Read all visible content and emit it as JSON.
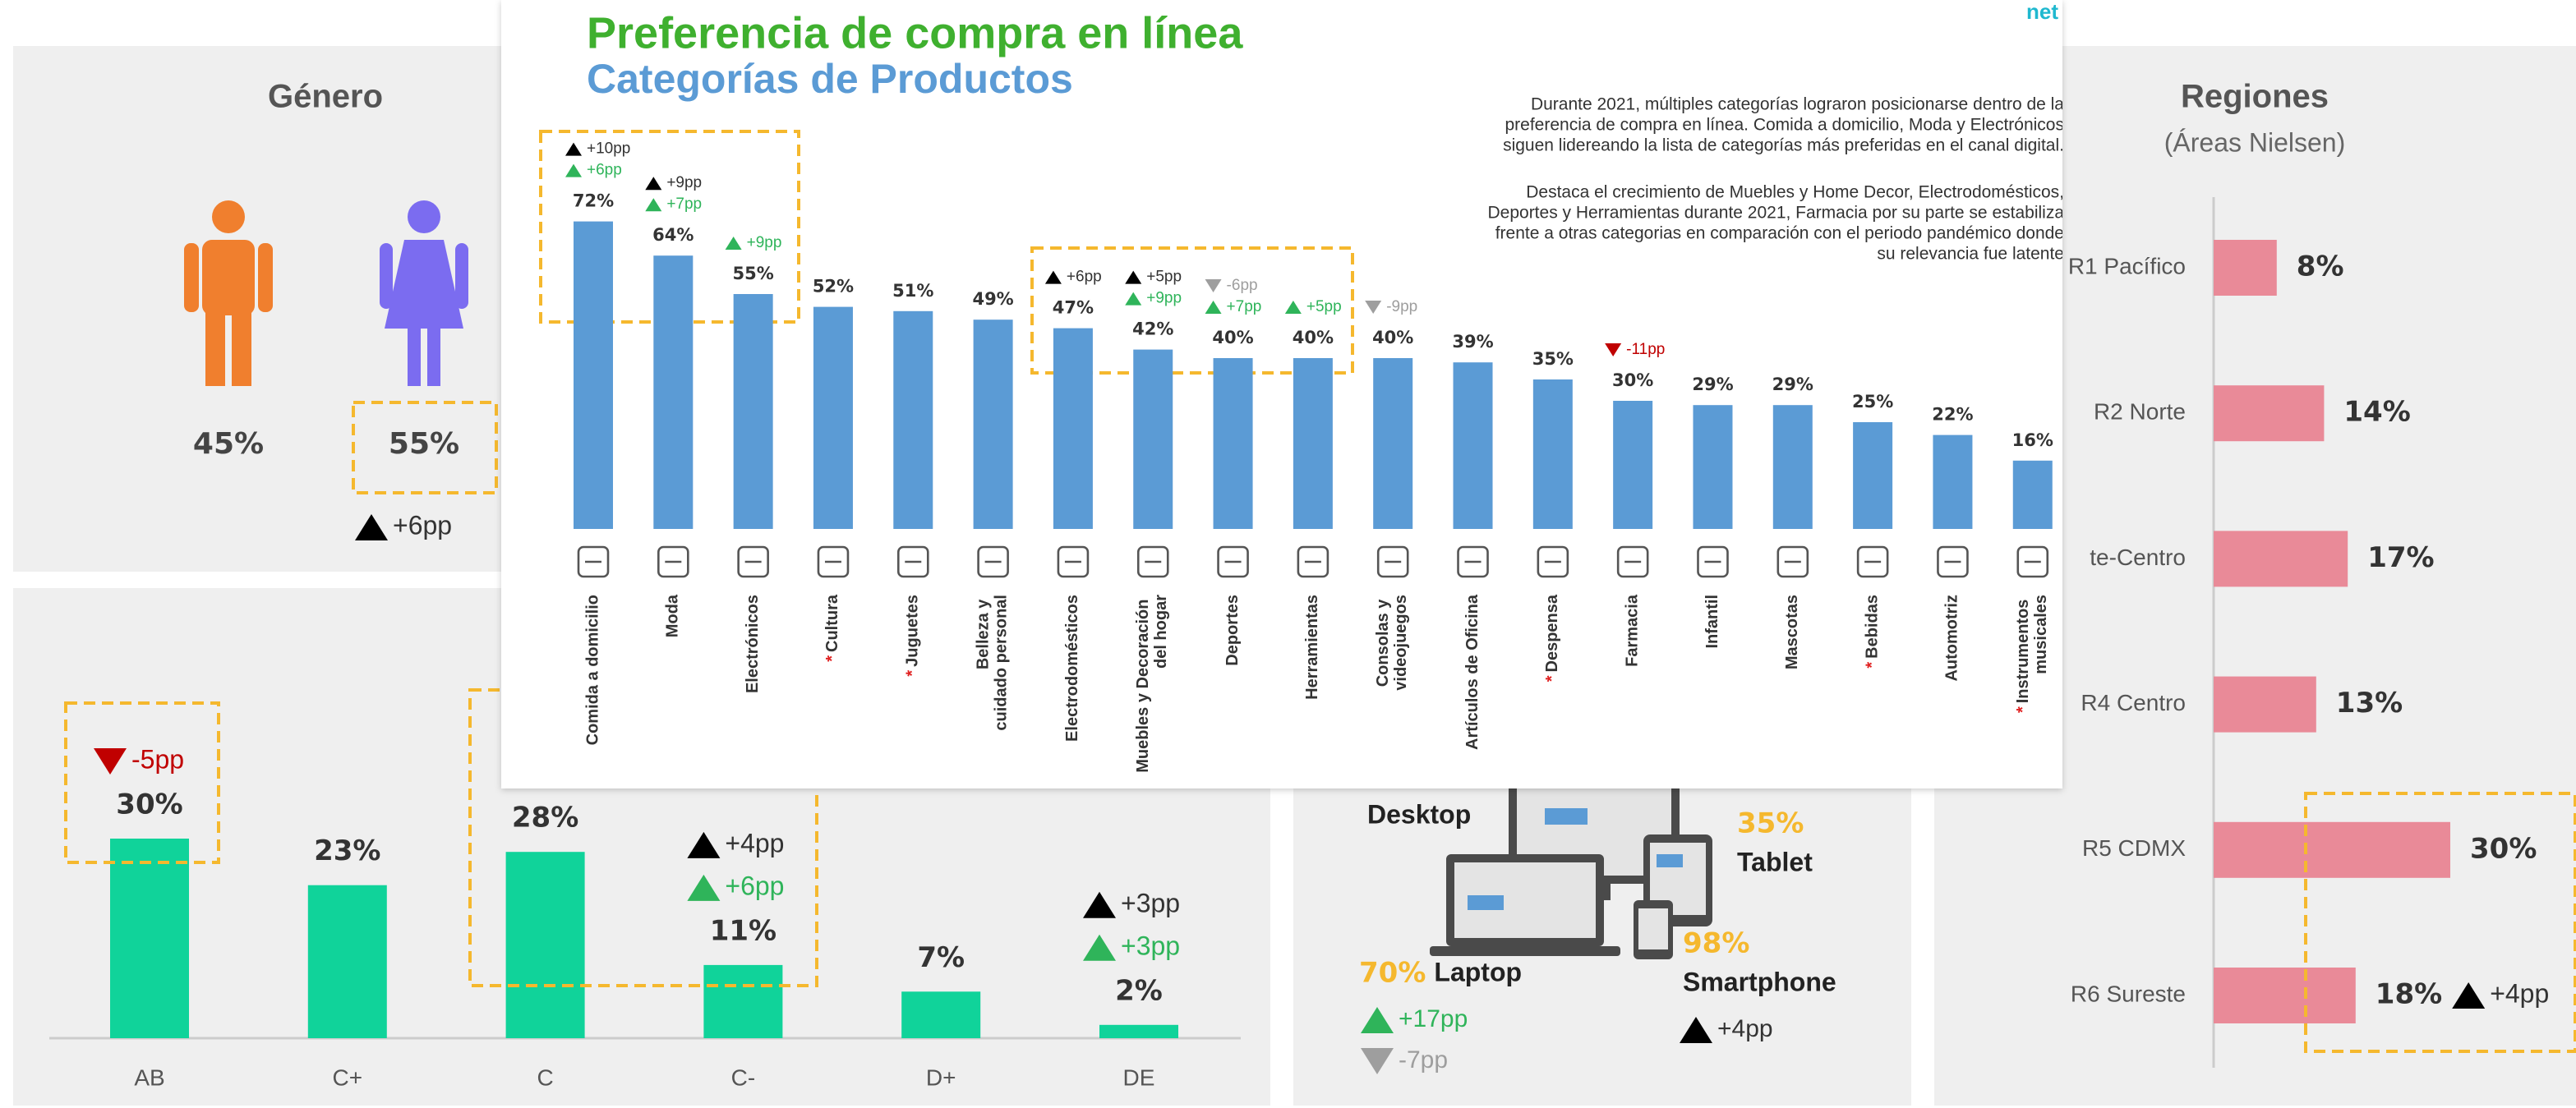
{
  "brand": "net",
  "chart_data": [
    {
      "type": "gender",
      "title": "Género",
      "values": [
        45,
        55
      ],
      "value_labels": [
        "45%",
        "55%"
      ],
      "colors": [
        "#f07f2e",
        "#7b6cf0"
      ],
      "annotations": [
        [],
        [
          {
            "value": 6,
            "label": "+6pp",
            "color": "#000000"
          }
        ]
      ]
    },
    {
      "type": "bar",
      "categories": [
        "AB",
        "C+",
        "C",
        "C-",
        "D+",
        "DE"
      ],
      "values": [
        30,
        23,
        28,
        11,
        7,
        2
      ],
      "value_labels": [
        "30%",
        "23%",
        "28%",
        "11%",
        "7%",
        "2%"
      ],
      "color": "#10d39a",
      "annotations": [
        [
          {
            "value": -5,
            "label": "-5pp",
            "color": "#c00000"
          }
        ],
        [],
        [],
        [
          {
            "value": 4,
            "label": "+4pp",
            "color": "#000000"
          },
          {
            "value": 6,
            "label": "+6pp",
            "color": "#2fb45a"
          }
        ],
        [],
        [
          {
            "value": 3,
            "label": "+3pp",
            "color": "#000000"
          },
          {
            "value": 3,
            "label": "+3pp",
            "color": "#2fb45a"
          }
        ]
      ]
    },
    {
      "type": "bar",
      "title": "Preferencia de compra en línea",
      "subtitle": "Categorías de Productos",
      "description": [
        [
          "Durante 2021, múltiples categorías lograron posicionarse dentro de la",
          "preferencia de compra en línea. Comida a domicilio, Moda y Electrónicos",
          "siguen lidereando la lista de categorías más preferidas en el canal digital."
        ],
        [
          "Destaca el crecimiento de Muebles y Home Decor, Electrodomésticos,",
          "Deportes y Herramientas durante 2021, Farmacia por su parte se estabiliza",
          "frente a otras categorias en comparación con el periodo pandémico donde",
          "su relevancia fue latente"
        ]
      ],
      "categories": [
        "Comida a domicilio",
        "Moda",
        "Electrónicos",
        "Cultura",
        "Juguetes",
        "Belleza y cuidado personal",
        "Electrodomésticos",
        "Muebles y Decoración del hogar",
        "Deportes",
        "Herramientas",
        "Consolas y videojuegos",
        "Artículos de Oficina",
        "Despensa",
        "Farmacia",
        "Infantil",
        "Mascotas",
        "Bebidas",
        "Automotriz",
        "Instrumentos musicales"
      ],
      "values": [
        72,
        64,
        55,
        52,
        51,
        49,
        47,
        42,
        40,
        40,
        40,
        39,
        35,
        30,
        29,
        29,
        25,
        22,
        16
      ],
      "value_labels": [
        "72%",
        "64%",
        "55%",
        "52%",
        "51%",
        "49%",
        "47%",
        "42%",
        "40%",
        "40%",
        "40%",
        "39%",
        "35%",
        "30%",
        "29%",
        "29%",
        "25%",
        "22%",
        "16%"
      ],
      "color": "#5b9bd5",
      "marker": "*",
      "marked": [
        false,
        false,
        false,
        true,
        true,
        false,
        false,
        false,
        false,
        false,
        false,
        false,
        true,
        false,
        false,
        false,
        true,
        false,
        true
      ],
      "annotations": [
        [
          {
            "value": 10,
            "label": "+10pp",
            "color": "#000000"
          },
          {
            "value": 6,
            "label": "+6pp",
            "color": "#2fb45a"
          }
        ],
        [
          {
            "value": 9,
            "label": "+9pp",
            "color": "#000000"
          },
          {
            "value": 7,
            "label": "+7pp",
            "color": "#2fb45a"
          }
        ],
        [
          {
            "value": 9,
            "label": "+9pp",
            "color": "#2fb45a"
          }
        ],
        [],
        [],
        [],
        [
          {
            "value": 6,
            "label": "+6pp",
            "color": "#000000"
          }
        ],
        [
          {
            "value": 5,
            "label": "+5pp",
            "color": "#000000"
          },
          {
            "value": 9,
            "label": "+9pp",
            "color": "#2fb45a"
          }
        ],
        [
          {
            "value": -6,
            "label": "-6pp",
            "color": "#9e9e9e"
          },
          {
            "value": 7,
            "label": "+7pp",
            "color": "#2fb45a"
          }
        ],
        [
          {
            "value": 5,
            "label": "+5pp",
            "color": "#2fb45a"
          }
        ],
        [
          {
            "value": -9,
            "label": "-9pp",
            "color": "#9e9e9e"
          }
        ],
        [],
        [],
        [
          {
            "value": -11,
            "label": "-11pp",
            "color": "#c00000"
          }
        ],
        [],
        [],
        [],
        [],
        []
      ]
    },
    {
      "type": "devices",
      "categories": [
        "Desktop",
        "Tablet",
        "Laptop",
        "Smartphone"
      ],
      "values": [
        null,
        35,
        70,
        98
      ],
      "value_labels": [
        null,
        "35%",
        "70%",
        "98%"
      ],
      "color": "#f5b82e",
      "annotations": [
        [],
        [],
        [
          {
            "value": 17,
            "label": "+17pp",
            "color": "#2fb45a"
          },
          {
            "value": -7,
            "label": "-7pp",
            "color": "#9e9e9e"
          }
        ],
        [
          {
            "value": 4,
            "label": "+4pp",
            "color": "#000000"
          }
        ]
      ]
    },
    {
      "type": "hbar",
      "title": "Regiones",
      "subtitle": "(Áreas Nielsen)",
      "categories": [
        "R1 Pacífico",
        "R2 Norte",
        "te-Centro",
        "R4 Centro",
        "R5 CDMX",
        "R6 Sureste"
      ],
      "values": [
        8,
        14,
        17,
        13,
        30,
        18
      ],
      "value_labels": [
        "8%",
        "14%",
        "17%",
        "13%",
        "30%",
        "18%"
      ],
      "color": "#e98a98",
      "annotations": [
        [],
        [],
        [],
        [],
        [],
        [
          {
            "value": 4,
            "label": "+4pp",
            "color": "#000000"
          }
        ]
      ]
    }
  ]
}
